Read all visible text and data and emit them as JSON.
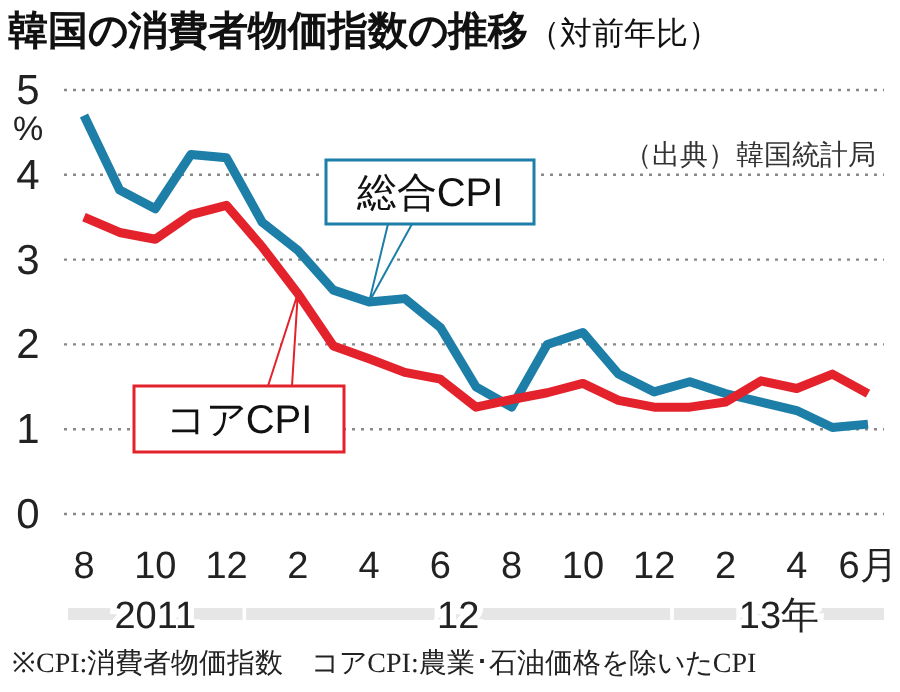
{
  "chart_data": {
    "type": "line",
    "title": "韓国の消費者物価指数の推移",
    "subtitle": "（対前年比）",
    "ylabel": "%",
    "categories": [
      "8",
      null,
      "10",
      null,
      "12",
      null,
      "2",
      null,
      "4",
      null,
      "6",
      null,
      "8",
      null,
      "10",
      null,
      "12",
      null,
      "2",
      null,
      "4",
      null,
      "6月"
    ],
    "series": [
      {
        "name": "総合CPI",
        "color": "#1d7fa8",
        "values": [
          4.7,
          3.82,
          3.6,
          4.24,
          4.2,
          3.44,
          3.11,
          2.64,
          2.5,
          2.54,
          2.2,
          1.5,
          1.26,
          2.0,
          2.14,
          1.65,
          1.44,
          1.56,
          1.42,
          1.32,
          1.22,
          1.02,
          1.06
        ]
      },
      {
        "name": "コアCPI",
        "color": "#e3222b",
        "values": [
          3.5,
          3.32,
          3.24,
          3.53,
          3.64,
          3.15,
          2.6,
          1.98,
          1.83,
          1.67,
          1.59,
          1.26,
          1.35,
          1.43,
          1.54,
          1.34,
          1.26,
          1.26,
          1.32,
          1.57,
          1.48,
          1.65,
          1.42
        ]
      }
    ],
    "ylim": [
      0,
      5
    ],
    "yticks": [
      0,
      1,
      2,
      3,
      4,
      5
    ],
    "grid": "y",
    "legend": "left",
    "marker": "none",
    "line_style": "solid",
    "annotations": [
      "2011",
      "12",
      "13年",
      "（出典）韓国統計局",
      "※CPI:消費者物価指数　コアCPI:農業･石油価格を除いたCPI"
    ]
  }
}
